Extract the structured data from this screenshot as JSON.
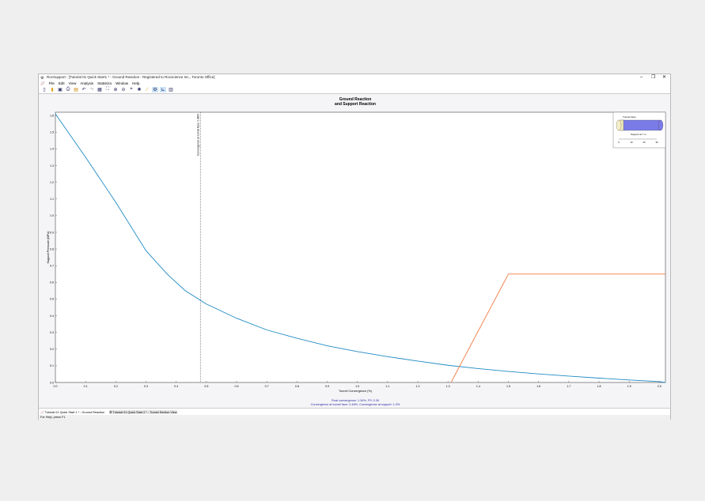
{
  "window": {
    "title": "RocSupport - [Tutorial 01 Quick Start1 * - Ground Reaction - Registered to Rocscience Inc., Toronto Office]",
    "controls": [
      "–",
      "❐",
      "✕"
    ]
  },
  "menu": [
    "File",
    "Edit",
    "View",
    "Analysis",
    "Statistics",
    "Window",
    "Help"
  ],
  "toolbar": [
    "new-icon",
    "open-icon",
    "save-icon",
    "print-icon",
    "export-icon",
    "undo-icon",
    "redo-icon",
    "project-settings-icon",
    "zoom-extents-icon",
    "zoom-in-icon",
    "zoom-out-icon",
    "select-icon",
    "compute-icon",
    "wand-icon",
    "gear-icon",
    "chart-icon",
    "section-icon"
  ],
  "tabs": [
    {
      "label": "Tutorial 01 Quick Start 1 * - Ground Reaction",
      "active": true
    },
    {
      "label": "Tutorial 01 Quick Start 2 * - Tunnel Section View",
      "active": false
    }
  ],
  "status": "For Help, press F1",
  "chart_data": {
    "type": "line",
    "title": "Ground Reaction",
    "subtitle": "and Support Reaction",
    "xlabel": "Tunnel Convergence (%)",
    "ylabel": "Support Pressure (MPa)",
    "xlim": [
      0,
      2.02
    ],
    "ylim": [
      0,
      1.62
    ],
    "xticks": [
      "0.0",
      "0.1",
      "0.2",
      "0.3",
      "0.4",
      "0.5",
      "0.6",
      "0.7",
      "0.8",
      "0.9",
      "1.0",
      "1.1",
      "1.2",
      "1.3",
      "1.4",
      "1.5",
      "1.6",
      "1.7",
      "1.8",
      "1.9",
      "2.0"
    ],
    "yticks": [
      "0.0",
      "0.1",
      "0.2",
      "0.3",
      "0.4",
      "0.5",
      "0.6",
      "0.7",
      "0.8",
      "0.9",
      "1.0",
      "1.1",
      "1.2",
      "1.3",
      "1.4",
      "1.5",
      "1.6"
    ],
    "series": [
      {
        "color": "#1f8bc3",
        "x": [
          0,
          0.1,
          0.2,
          0.3,
          0.37,
          0.43,
          0.5,
          0.6,
          0.7,
          0.8,
          0.9,
          1.0,
          1.1,
          1.2,
          1.3,
          1.4,
          1.5,
          1.6,
          1.7,
          1.8,
          1.9,
          2.0,
          2.02
        ],
        "y": [
          1.61,
          1.35,
          1.08,
          0.79,
          0.65,
          0.55,
          0.47,
          0.385,
          0.315,
          0.265,
          0.22,
          0.185,
          0.155,
          0.128,
          0.103,
          0.083,
          0.066,
          0.051,
          0.038,
          0.026,
          0.015,
          0.005,
          0.0
        ]
      },
      {
        "color": "#f07c45",
        "x": [
          1.31,
          1.5,
          2.02
        ],
        "y": [
          0,
          0.65,
          0.65
        ]
      }
    ],
    "vline": {
      "x": 0.48,
      "label": "Convergence at tunnel face: 0.48%"
    },
    "grid": false,
    "footer": [
      "Final convergence: 1.34%, FS: 0.30",
      "Convergence at tunnel face: 0.48%, Convergence at support: 1.3%"
    ],
    "inset": {
      "face_label": "Tunnel Face",
      "support_label": "Support at 7 m",
      "ticks": [
        "0",
        "10",
        "20",
        "30"
      ]
    }
  }
}
